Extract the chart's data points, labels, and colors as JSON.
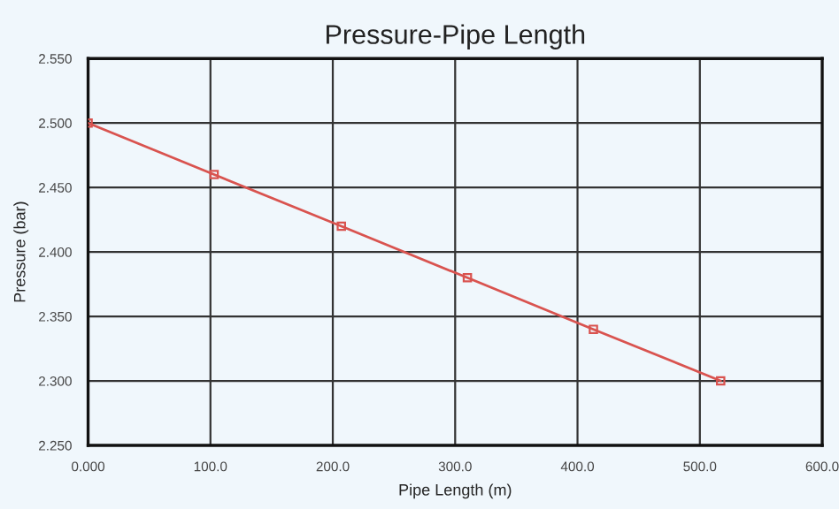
{
  "chart_data": {
    "type": "line",
    "title": "Pressure-Pipe Length",
    "xlabel": "Pipe Length (m)",
    "ylabel": "Pressure (bar)",
    "x": [
      0,
      103,
      207,
      310,
      413,
      517
    ],
    "series": [
      {
        "color": "#d9534f",
        "values": [
          2.5,
          2.46,
          2.42,
          2.38,
          2.34,
          2.3
        ]
      }
    ],
    "xlim": [
      0,
      600
    ],
    "xticks": [
      {
        "value": 0,
        "label": "0.000"
      },
      {
        "value": 100,
        "label": "100.0"
      },
      {
        "value": 200,
        "label": "200.0"
      },
      {
        "value": 300,
        "label": "300.0"
      },
      {
        "value": 400,
        "label": "400.0"
      },
      {
        "value": 500,
        "label": "500.0"
      },
      {
        "value": 600,
        "label": "600.0"
      }
    ],
    "ylim": [
      2.25,
      2.55
    ],
    "yticks": [
      {
        "value": 2.25,
        "label": "2.250"
      },
      {
        "value": 2.3,
        "label": "2.300"
      },
      {
        "value": 2.35,
        "label": "2.350"
      },
      {
        "value": 2.4,
        "label": "2.400"
      },
      {
        "value": 2.45,
        "label": "2.450"
      },
      {
        "value": 2.5,
        "label": "2.500"
      },
      {
        "value": 2.55,
        "label": "2.550"
      }
    ],
    "grid": true,
    "marker": "square",
    "line_style": "solid"
  }
}
